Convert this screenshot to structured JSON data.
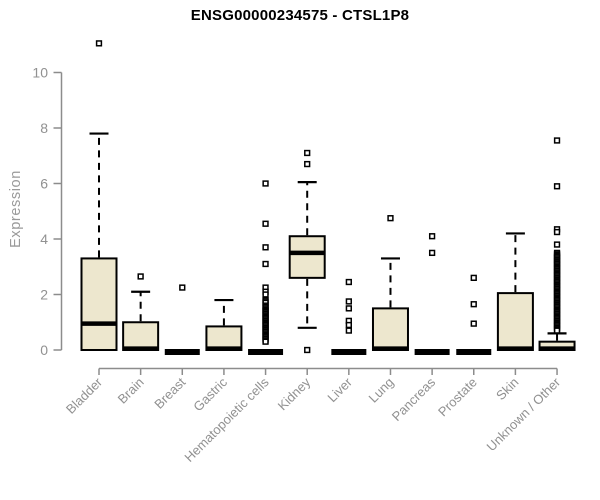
{
  "chart_data": {
    "type": "boxplot",
    "title": "ENSG00000234575 - CTSL1P8",
    "ylabel": "Expression",
    "xlabel": "",
    "yticks": [
      0,
      2,
      4,
      6,
      8,
      10
    ],
    "ylim": [
      0,
      11.2
    ],
    "grid": false,
    "legend": "none",
    "categories": [
      "Bladder",
      "Brain",
      "Breast",
      "Gastric",
      "Hematopoietic cells",
      "Kidney",
      "Liver",
      "Lung",
      "Pancreas",
      "Prostate",
      "Skin",
      "Unknown / Other"
    ],
    "boxes": [
      {
        "category": "Bladder",
        "q1": 0,
        "median": 0.95,
        "q3": 3.3,
        "whisker_low": 0,
        "whisker_high": 7.8,
        "outliers": [
          11.05
        ]
      },
      {
        "category": "Brain",
        "q1": 0,
        "median": 0.05,
        "q3": 1.0,
        "whisker_low": 0,
        "whisker_high": 2.1,
        "outliers": [
          2.65
        ]
      },
      {
        "category": "Breast",
        "q1": 0,
        "median": 0,
        "q3": 0,
        "whisker_low": 0,
        "whisker_high": 0,
        "outliers": [
          2.25
        ]
      },
      {
        "category": "Gastric",
        "q1": 0,
        "median": 0.05,
        "q3": 0.85,
        "whisker_low": 0,
        "whisker_high": 1.8,
        "outliers": []
      },
      {
        "category": "Hematopoietic cells",
        "q1": 0,
        "median": 0,
        "q3": 0,
        "whisker_low": 0,
        "whisker_high": 0,
        "outliers": [
          6.0,
          4.55,
          3.7,
          3.1,
          2.25,
          2.1,
          2.0,
          1.8,
          1.75,
          1.7,
          1.6,
          1.55,
          1.5,
          1.45,
          1.4,
          1.35,
          1.3,
          1.25,
          1.2,
          1.15,
          1.1,
          1.05,
          1.0,
          0.95,
          0.9,
          0.85,
          0.8,
          0.75,
          0.7,
          0.65,
          0.6,
          0.55,
          0.5,
          0.45,
          0.4,
          0.35,
          0.3
        ]
      },
      {
        "category": "Kidney",
        "q1": 2.6,
        "median": 3.5,
        "q3": 4.1,
        "whisker_low": 0.8,
        "whisker_high": 6.05,
        "outliers": [
          7.1,
          6.7,
          0.0
        ]
      },
      {
        "category": "Liver",
        "q1": 0,
        "median": 0,
        "q3": 0,
        "whisker_low": 0,
        "whisker_high": 0,
        "outliers": [
          2.45,
          1.75,
          1.5,
          1.05,
          0.9,
          0.7
        ]
      },
      {
        "category": "Lung",
        "q1": 0,
        "median": 0.05,
        "q3": 1.5,
        "whisker_low": 0,
        "whisker_high": 3.3,
        "outliers": [
          4.75
        ]
      },
      {
        "category": "Pancreas",
        "q1": 0,
        "median": 0,
        "q3": 0,
        "whisker_low": 0,
        "whisker_high": 0,
        "outliers": [
          4.1,
          3.5
        ]
      },
      {
        "category": "Prostate",
        "q1": 0,
        "median": 0,
        "q3": 0,
        "whisker_low": 0,
        "whisker_high": 0,
        "outliers": [
          2.6,
          1.65,
          0.95
        ]
      },
      {
        "category": "Skin",
        "q1": 0,
        "median": 0.05,
        "q3": 2.05,
        "whisker_low": 0,
        "whisker_high": 4.2,
        "outliers": []
      },
      {
        "category": "Unknown / Other",
        "q1": 0,
        "median": 0.05,
        "q3": 0.3,
        "whisker_low": 0,
        "whisker_high": 0.6,
        "outliers": [
          7.55,
          5.9,
          4.35,
          4.25,
          3.8,
          3.5,
          3.45,
          3.4,
          3.35,
          3.3,
          3.25,
          3.2,
          3.15,
          3.1,
          3.05,
          3.0,
          2.95,
          2.9,
          2.85,
          2.8,
          2.75,
          2.7,
          2.65,
          2.6,
          2.55,
          2.5,
          2.45,
          2.4,
          2.35,
          2.3,
          2.25,
          2.2,
          2.15,
          2.1,
          2.05,
          2.0,
          1.95,
          1.9,
          1.85,
          1.8,
          1.75,
          1.7,
          1.65,
          1.6,
          1.55,
          1.5,
          1.45,
          1.4,
          1.35,
          1.3,
          1.25,
          1.2,
          1.15,
          1.1,
          1.05,
          1.0,
          0.95,
          0.9,
          0.85,
          0.8,
          0.75,
          0.7
        ]
      }
    ],
    "colors": {
      "box_fill": "#EDE7CE",
      "box_stroke": "#000000",
      "median": "#000000",
      "whisker": "#000000",
      "outlier_fill": "#FFFFFF",
      "outlier_stroke": "#000000",
      "axis_line": "#8C8C8C",
      "tick_text": "#919191",
      "title_text": "#000000",
      "background": "#FFFFFF"
    }
  }
}
